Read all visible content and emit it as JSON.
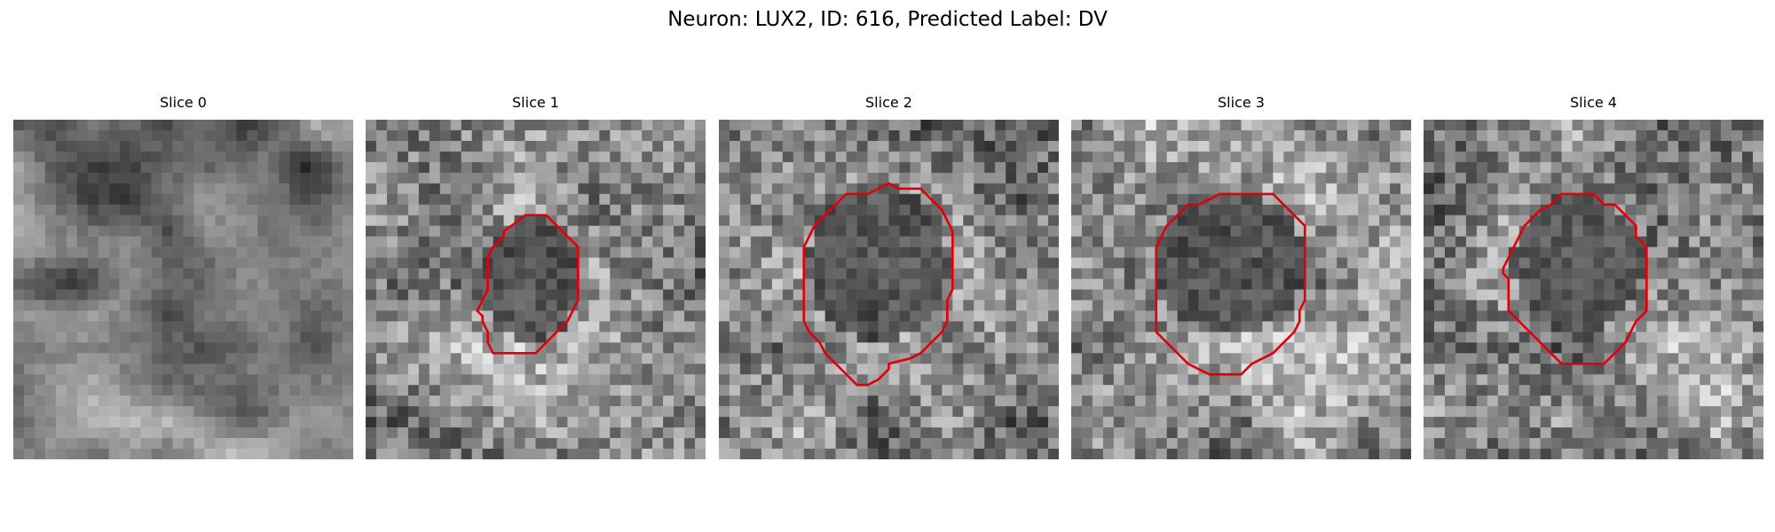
{
  "figure": {
    "title": "Neuron: LUX2, ID: 616, Predicted Label: DV",
    "outline_color": "#e0000b",
    "colormap": "grayscale"
  },
  "panels": [
    {
      "title": "Slice 0",
      "has_outline": false,
      "seed": 11,
      "dark_blob": false,
      "pattern": "blotchy"
    },
    {
      "title": "Slice 1",
      "has_outline": true,
      "seed": 23,
      "dark_blob": true,
      "pattern": "speckled"
    },
    {
      "title": "Slice 2",
      "has_outline": true,
      "seed": 37,
      "dark_blob": true,
      "pattern": "speckled"
    },
    {
      "title": "Slice 3",
      "has_outline": true,
      "seed": 51,
      "dark_blob": true,
      "pattern": "speckled"
    },
    {
      "title": "Slice 4",
      "has_outline": true,
      "seed": 67,
      "dark_blob": true,
      "pattern": "speckled"
    }
  ]
}
